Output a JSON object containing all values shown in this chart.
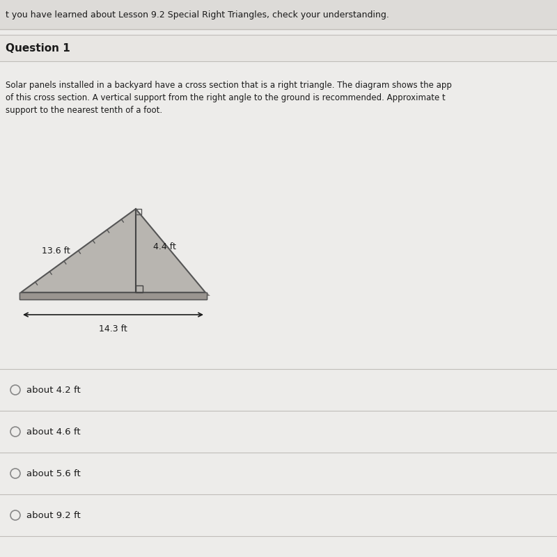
{
  "bg_color": "#e8e6e3",
  "page_bg": "#edecea",
  "header_text": "t you have learned about Lesson 9.2 Special Right Triangles, check your understanding.",
  "header_bg": "#dddbd8",
  "question_label": "Question 1",
  "question_bg": "#e8e6e3",
  "body_text_line1": "Solar panels installed in a backyard have a cross section that is a right triangle. The diagram shows the app",
  "body_text_line2": "of this cross section. A vertical support from the right angle to the ground is recommended. Approximate t",
  "body_text_line3": "support to the nearest tenth of a foot.",
  "label_136": "13.6 ft",
  "label_44": "4.4 ft",
  "label_143": "14.3 ft",
  "choices": [
    "about 4.2 ft",
    "about 4.6 ft",
    "about 5.6 ft",
    "about 9.2 ft"
  ],
  "font_family": "DejaVu Sans",
  "text_color": "#1a1a1a",
  "separator_color": "#c0bdb9",
  "tri_fill": "#b8b5b0",
  "tri_edge": "#555555",
  "base_fill": "#9a9590",
  "support_color": "#444444"
}
